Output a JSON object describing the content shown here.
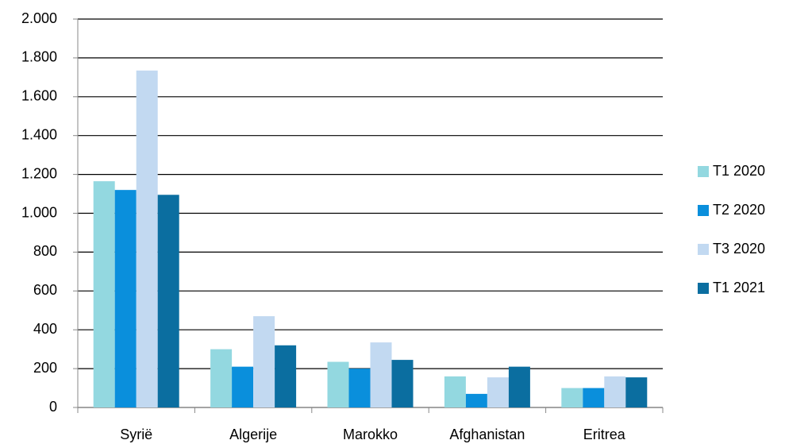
{
  "chart_data": {
    "type": "bar",
    "categories": [
      "Syrië",
      "Algerije",
      "Marokko",
      "Afghanistan",
      "Eritrea"
    ],
    "series": [
      {
        "name": "T1 2020",
        "color": "#93d8e0",
        "values": [
          1165,
          300,
          235,
          160,
          100
        ]
      },
      {
        "name": "T2 2020",
        "color": "#0a8fdc",
        "values": [
          1120,
          210,
          200,
          70,
          100
        ]
      },
      {
        "name": "T3 2020",
        "color": "#c2d9f1",
        "values": [
          1735,
          470,
          335,
          155,
          160
        ]
      },
      {
        "name": "T1 2021",
        "color": "#0b6ea0",
        "values": [
          1095,
          320,
          245,
          210,
          155
        ]
      }
    ],
    "ylim": [
      0,
      2000
    ],
    "yticks": [
      0,
      200,
      400,
      600,
      800,
      {
        "value": 1000,
        "label": "1.000"
      },
      {
        "value": 1200,
        "label": "1.200"
      },
      {
        "value": 1400,
        "label": "1.400"
      },
      {
        "value": 1600,
        "label": "1.600"
      },
      {
        "value": 1800,
        "label": "1.800"
      },
      {
        "value": 2000,
        "label": "2.000"
      }
    ],
    "grid": true,
    "legend": "right"
  }
}
